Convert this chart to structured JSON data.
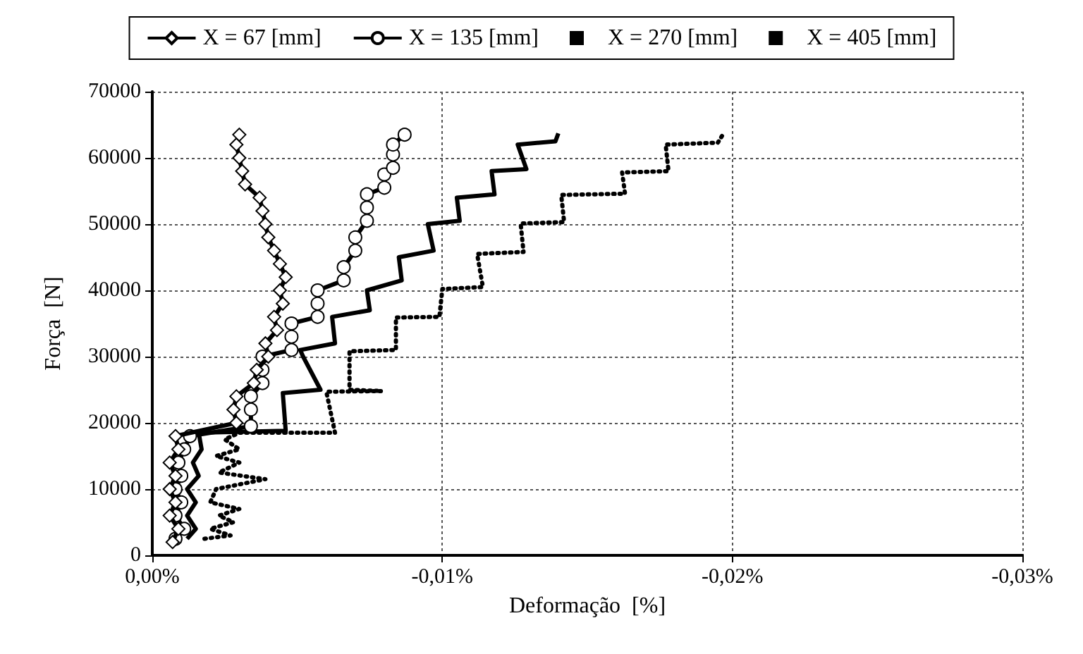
{
  "chart_data": {
    "type": "line",
    "xlabel": "Deformação  [%]",
    "ylabel": "Força  [N]",
    "legend": "top",
    "grid": true,
    "xlim": [
      0,
      -0.03
    ],
    "xticks": [
      {
        "value": 0,
        "label": "0,00%"
      },
      {
        "value": -0.01,
        "label": "-0,01%"
      },
      {
        "value": -0.02,
        "label": "-0,02%"
      },
      {
        "value": -0.03,
        "label": "-0,03%"
      }
    ],
    "ylim": [
      0,
      70000
    ],
    "yticks": [
      0,
      10000,
      20000,
      30000,
      40000,
      50000,
      60000,
      70000
    ],
    "series": [
      {
        "name": "X = 67 [mm]",
        "color": "#000000",
        "marker": "diamond",
        "line_style": "solid",
        "x": [
          -0.0007,
          -0.0009,
          -0.0006,
          -0.0008,
          -0.0006,
          -0.0008,
          -0.0006,
          -0.0009,
          -0.0008,
          -0.0029,
          -0.0028,
          -0.0029,
          -0.0035,
          -0.0036,
          -0.004,
          -0.0039,
          -0.0043,
          -0.0042,
          -0.0045,
          -0.0044,
          -0.0046,
          -0.0044,
          -0.0042,
          -0.004,
          -0.0039,
          -0.0038,
          -0.0037,
          -0.0032,
          -0.0031,
          -0.003,
          -0.0029,
          -0.003
        ],
        "values": [
          2000,
          4000,
          6000,
          8000,
          10000,
          12000,
          14000,
          16000,
          18000,
          20000,
          22000,
          24000,
          26000,
          28000,
          30000,
          32000,
          34000,
          36000,
          38000,
          40000,
          42000,
          44000,
          46000,
          48000,
          50000,
          52000,
          54000,
          56000,
          58000,
          60000,
          62000,
          63500
        ]
      },
      {
        "name": "X = 135 [mm]",
        "color": "#000000",
        "marker": "circle",
        "line_style": "solid",
        "x": [
          -0.0008,
          -0.0011,
          -0.0008,
          -0.001,
          -0.0008,
          -0.001,
          -0.0009,
          -0.0011,
          -0.0013,
          -0.0034,
          -0.0034,
          -0.0034,
          -0.0038,
          -0.0038,
          -0.0038,
          -0.0048,
          -0.0048,
          -0.0048,
          -0.0057,
          -0.0057,
          -0.0057,
          -0.0066,
          -0.0066,
          -0.007,
          -0.007,
          -0.0074,
          -0.0074,
          -0.0074,
          -0.008,
          -0.008,
          -0.0083,
          -0.0083,
          -0.0083,
          -0.0087
        ],
        "values": [
          2500,
          4000,
          6000,
          8000,
          10000,
          12000,
          14000,
          16000,
          18000,
          19500,
          22000,
          24000,
          26000,
          28000,
          30000,
          31000,
          33000,
          35000,
          36000,
          38000,
          40000,
          41500,
          43500,
          46000,
          48000,
          50500,
          52500,
          54500,
          55500,
          57500,
          58500,
          60500,
          62000,
          63500
        ]
      },
      {
        "name": "X = 270 [mm]",
        "color": "#000000",
        "marker": "none",
        "line_style": "solid",
        "x": [
          -0.0012,
          -0.0015,
          -0.0012,
          -0.0015,
          -0.0012,
          -0.0016,
          -0.0014,
          -0.0017,
          -0.0016,
          -0.0046,
          -0.0045,
          -0.0058,
          -0.0052,
          -0.0051,
          -0.0063,
          -0.0062,
          -0.0075,
          -0.0074,
          -0.0086,
          -0.0085,
          -0.0097,
          -0.0095,
          -0.0106,
          -0.0105,
          -0.0118,
          -0.0117,
          -0.0129,
          -0.0126,
          -0.0139,
          -0.014
        ],
        "values": [
          2500,
          4000,
          6000,
          8000,
          10000,
          12000,
          14000,
          16000,
          18500,
          18800,
          24500,
          25000,
          30000,
          31000,
          32000,
          36000,
          37000,
          40000,
          41500,
          45000,
          46000,
          50000,
          50500,
          54000,
          54500,
          58000,
          58300,
          62000,
          62500,
          63700
        ]
      },
      {
        "name": "X = 405 [mm]",
        "color": "#000000",
        "marker": "none",
        "line_style": "dotted",
        "x": [
          -0.0018,
          -0.0027,
          -0.002,
          -0.0028,
          -0.0023,
          -0.003,
          -0.002,
          -0.0022,
          -0.0039,
          -0.0023,
          -0.003,
          -0.0022,
          -0.003,
          -0.0025,
          -0.003,
          -0.0063,
          -0.006,
          -0.0079,
          -0.0068,
          -0.0068,
          -0.0084,
          -0.0084,
          -0.0099,
          -0.01,
          -0.0114,
          -0.0112,
          -0.0128,
          -0.0127,
          -0.0142,
          -0.0141,
          -0.0163,
          -0.0162,
          -0.0178,
          -0.0177,
          -0.0195,
          -0.0197
        ],
        "values": [
          2500,
          3000,
          4000,
          5000,
          6000,
          7000,
          8000,
          10000,
          11500,
          12500,
          14000,
          15000,
          16000,
          17500,
          18500,
          18500,
          24700,
          24800,
          25000,
          30800,
          31000,
          35900,
          36000,
          40200,
          40500,
          45500,
          45800,
          50100,
          50300,
          54400,
          54600,
          57800,
          58000,
          62000,
          62300,
          63700
        ]
      }
    ]
  }
}
